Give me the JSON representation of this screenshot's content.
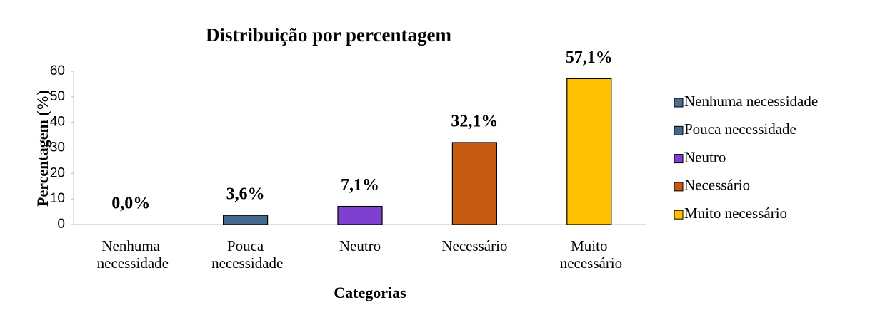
{
  "chart_data": {
    "type": "bar",
    "title": "Distribuição por percentagem",
    "y_label": "Percentagem (%)",
    "x_label": "Categorias",
    "categories": [
      "Nenhuma necessidade",
      "Pouca necessidade",
      "Neutro",
      "Necessário",
      "Muito necessário"
    ],
    "values": [
      0,
      3.6,
      7.1,
      32.1,
      57.1
    ],
    "value_labels": [
      "0,0%",
      "3,6%",
      "7,1%",
      "32,1%",
      "57,1%"
    ],
    "colors": [
      "#4a6f93",
      "#44698f",
      "#7f3fd0",
      "#c55a11",
      "#ffc000"
    ],
    "ylim": [
      0,
      60
    ],
    "yticks": [
      0,
      10,
      20,
      30,
      40,
      50,
      60
    ],
    "grid": false,
    "legend": "right"
  }
}
